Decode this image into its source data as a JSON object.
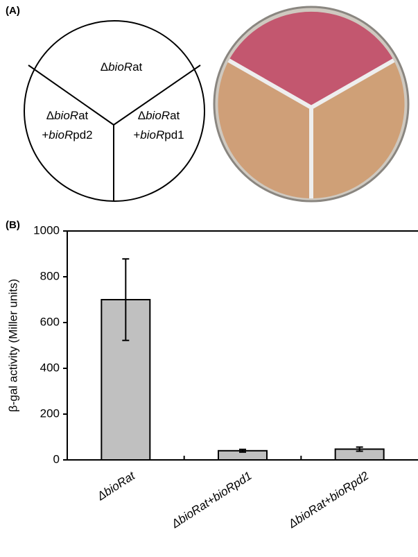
{
  "panel_a": {
    "label": "(A)",
    "sectors": [
      {
        "lines": [
          {
            "prefix": "Δ",
            "italic": "bioR",
            "suffix": "at"
          }
        ]
      },
      {
        "lines": [
          {
            "prefix": "Δ",
            "italic": "bioR",
            "suffix": "at"
          },
          {
            "prefix": "+",
            "italic": "bioR",
            "suffix": "pd2"
          }
        ]
      },
      {
        "lines": [
          {
            "prefix": "Δ",
            "italic": "bioR",
            "suffix": "at"
          },
          {
            "prefix": "+",
            "italic": "bioR",
            "suffix": "pd1"
          }
        ]
      }
    ]
  },
  "chart_data": {
    "type": "bar",
    "panel_label": "(B)",
    "y_label": "β-gal activity (Miller units)",
    "categories": [
      "ΔbioRat",
      "ΔbioRat+bioRpd1",
      "ΔbioRat+bioRpd2"
    ],
    "values": [
      700,
      40,
      47
    ],
    "errors": [
      178,
      6,
      9
    ],
    "color": "#c0c0c0",
    "ylim": [
      0,
      1000
    ],
    "yticks": [
      0,
      200,
      400,
      600,
      800,
      1000
    ],
    "grid": false
  }
}
